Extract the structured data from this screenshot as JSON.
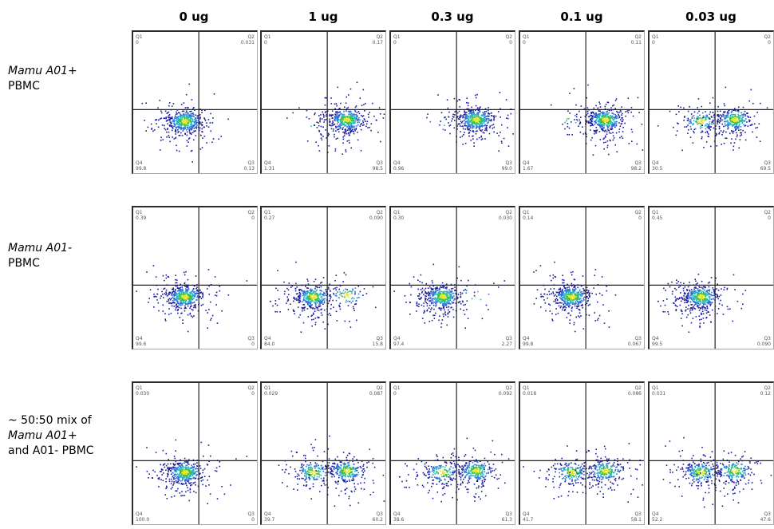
{
  "chart_data": {
    "type": "scatter",
    "columns": [
      "0 ug",
      "1 ug",
      "0.3 ug",
      "0.1 ug",
      "0.03 ug"
    ],
    "rows": [
      {
        "label": [
          {
            "text": "Mamu A01+",
            "italic": true
          },
          {
            "text": "PBMC",
            "italic": false
          }
        ],
        "panels": [
          {
            "Q1": "0",
            "Q2": "0.031",
            "Q3": "0.13",
            "Q4": "99.8"
          },
          {
            "Q1": "0",
            "Q2": "0.17",
            "Q3": "98.5",
            "Q4": "1.31"
          },
          {
            "Q1": "0",
            "Q2": "0",
            "Q3": "99.0",
            "Q4": "0.96"
          },
          {
            "Q1": "0",
            "Q2": "0.11",
            "Q3": "98.2",
            "Q4": "1.67"
          },
          {
            "Q1": "0",
            "Q2": "0",
            "Q3": "69.5",
            "Q4": "30.5"
          }
        ]
      },
      {
        "label": [
          {
            "text": "Mamu A01-",
            "italic": true
          },
          {
            "text": "PBMC",
            "italic": false
          }
        ],
        "panels": [
          {
            "Q1": "0.39",
            "Q2": "0",
            "Q3": "0",
            "Q4": "99.6"
          },
          {
            "Q1": "0.27",
            "Q2": "0.090",
            "Q3": "15.8",
            "Q4": "84.0"
          },
          {
            "Q1": "0.30",
            "Q2": "0.030",
            "Q3": "2.27",
            "Q4": "97.4"
          },
          {
            "Q1": "0.14",
            "Q2": "0",
            "Q3": "0.067",
            "Q4": "99.8"
          },
          {
            "Q1": "0.45",
            "Q2": "0",
            "Q3": "0.090",
            "Q4": "99.5"
          }
        ]
      },
      {
        "label": [
          {
            "text": "~ 50:50 mix of",
            "italic": false
          },
          {
            "text": "Mamu A01+",
            "italic": true
          },
          {
            "text": "and A01- PBMC",
            "italic": false
          }
        ],
        "panels": [
          {
            "Q1": "0.030",
            "Q2": "0",
            "Q3": "0",
            "Q4": "100.0"
          },
          {
            "Q1": "0.029",
            "Q2": "0.087",
            "Q3": "60.2",
            "Q4": "39.7"
          },
          {
            "Q1": "0",
            "Q2": "0.092",
            "Q3": "61.3",
            "Q4": "38.6"
          },
          {
            "Q1": "0.018",
            "Q2": "0.086",
            "Q3": "58.1",
            "Q4": "41.7"
          },
          {
            "Q1": "0.031",
            "Q2": "0.12",
            "Q3": "47.6",
            "Q4": "52.2"
          }
        ]
      }
    ],
    "colors": [
      "#1a1a9c",
      "#2f6fd6",
      "#24b8c9",
      "#3cc24a",
      "#e8e62a"
    ]
  }
}
